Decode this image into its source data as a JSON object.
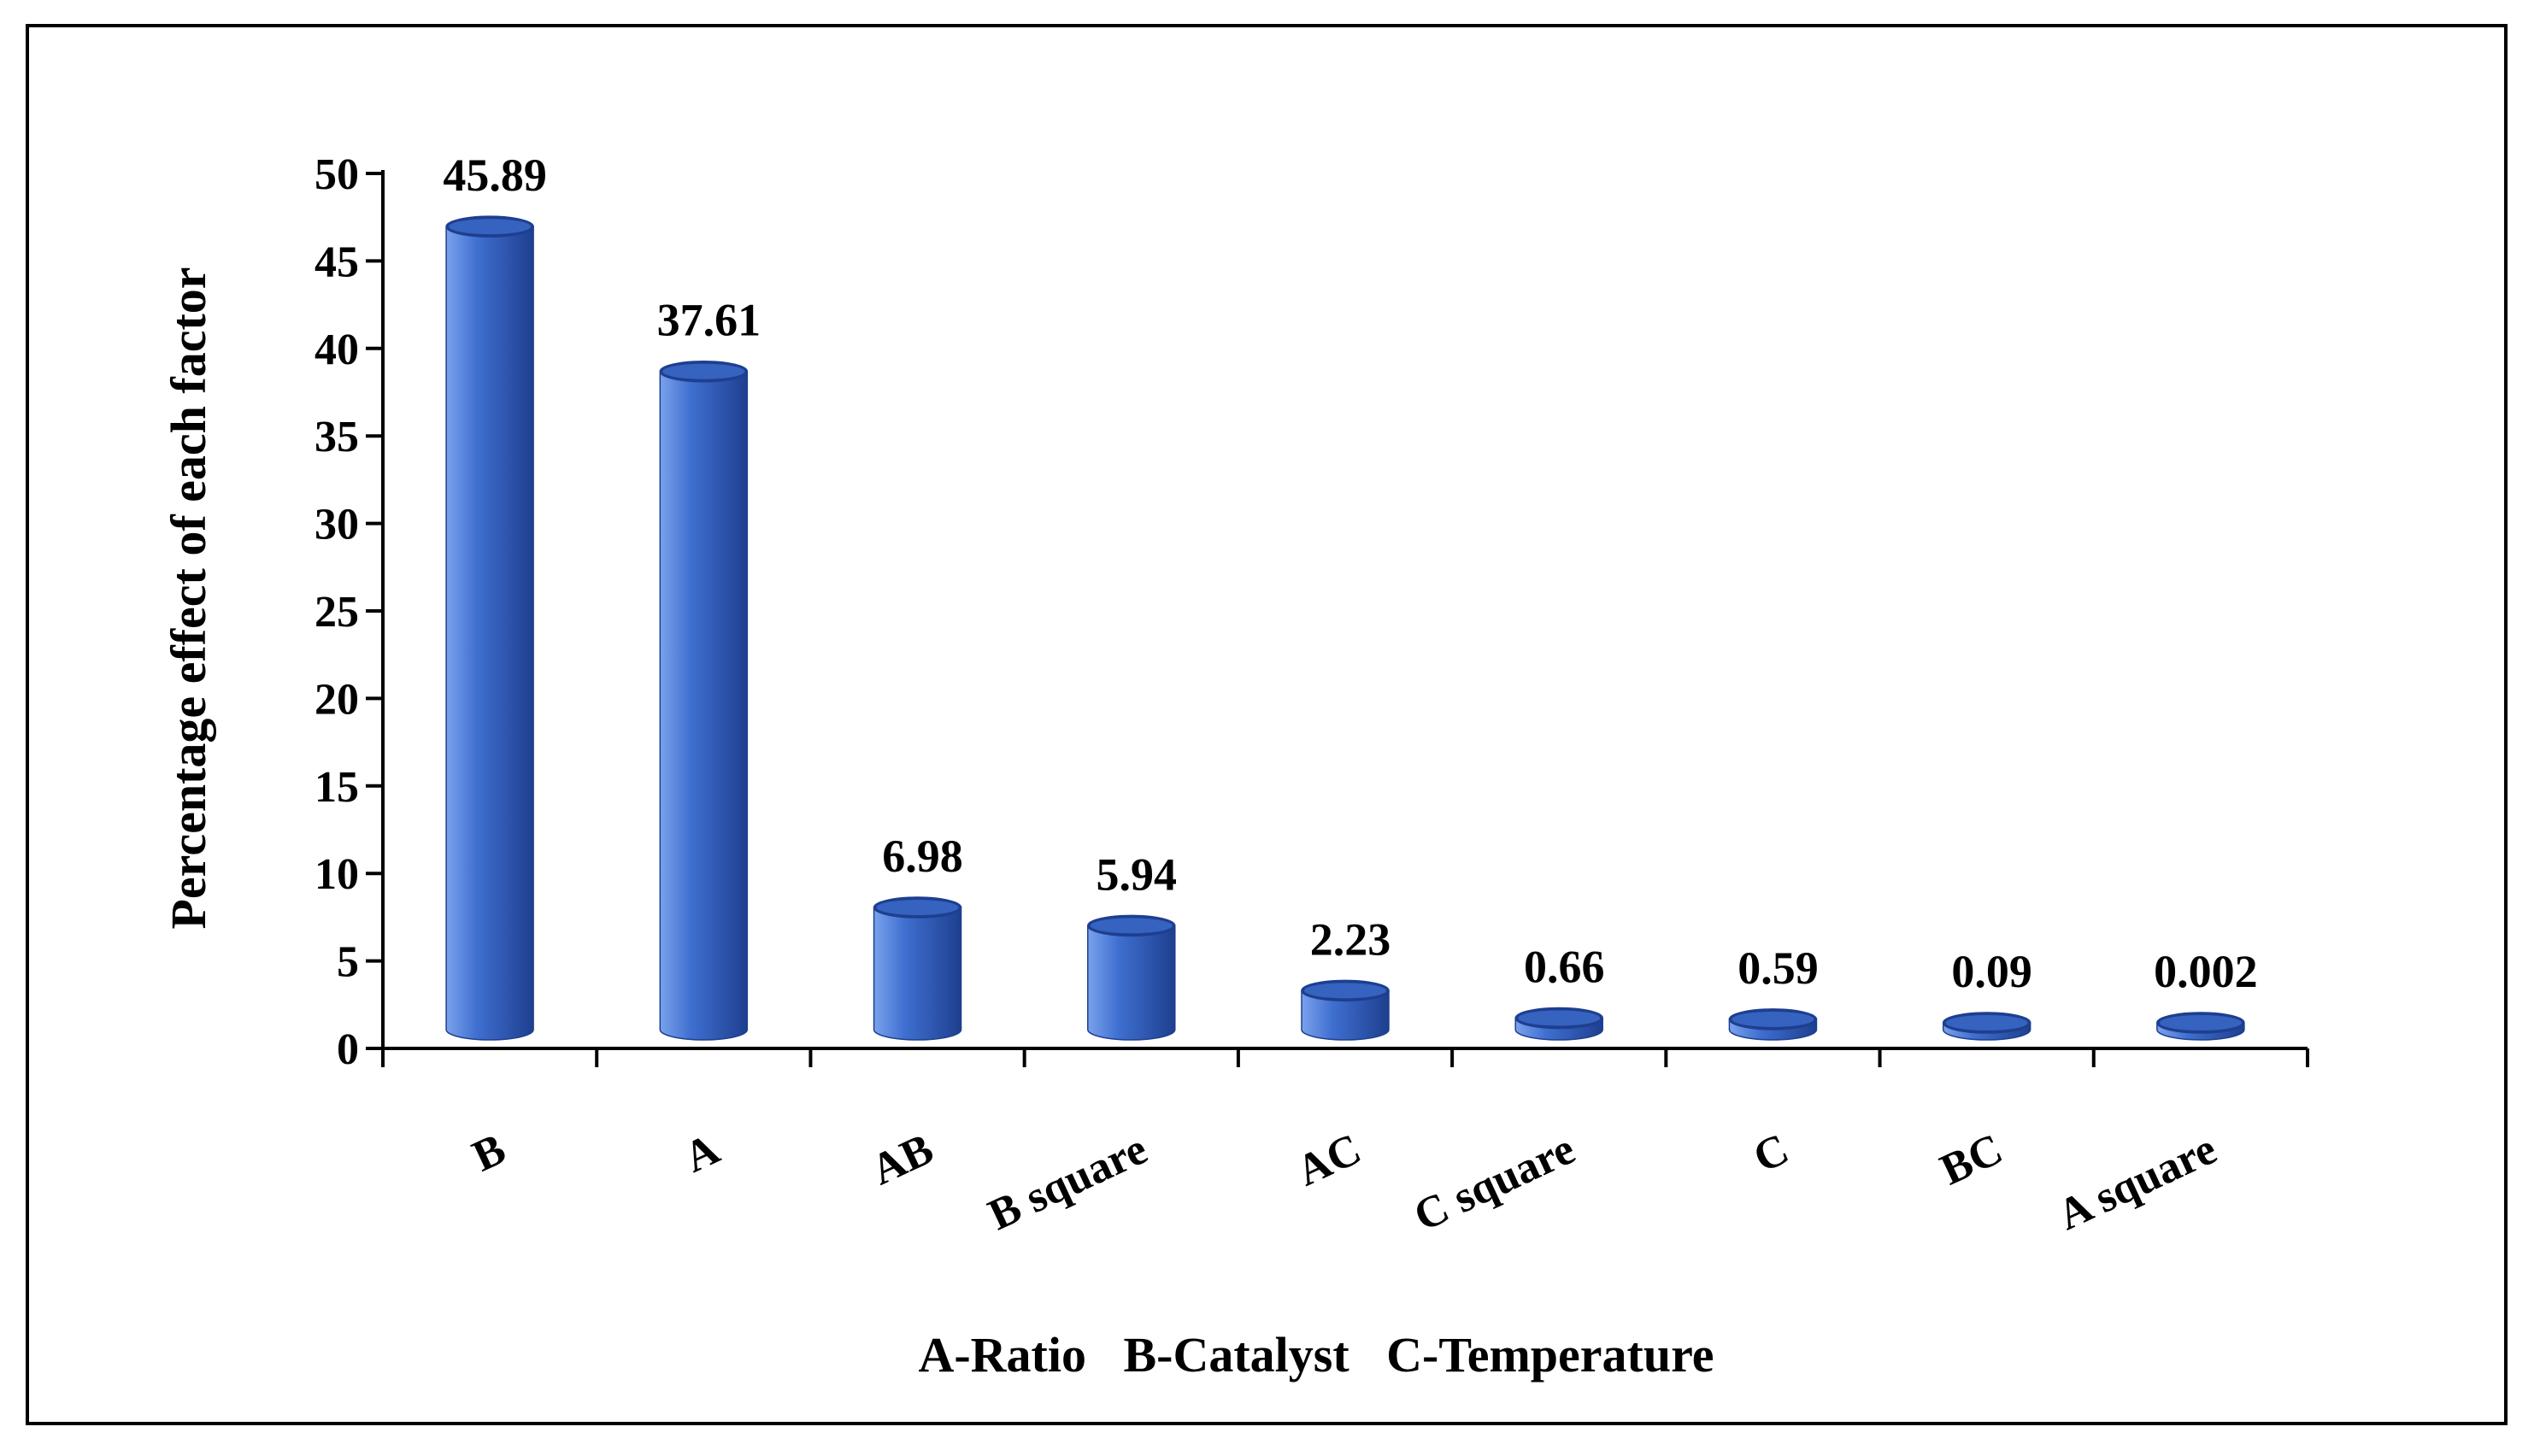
{
  "chart_data": {
    "type": "bar",
    "style": "3d-cylinder",
    "title": "",
    "ylabel": "Percentage effect of each factor",
    "xlabel": "A-Ratio   B-Catalyst   C-Temperature",
    "categories": [
      "B",
      "A",
      "AB",
      "B square",
      "AC",
      "C square",
      "C",
      "BC",
      "A square"
    ],
    "values": [
      45.89,
      37.61,
      6.98,
      5.94,
      2.23,
      0.66,
      0.59,
      0.09,
      0.002
    ],
    "data_labels": [
      "45.89",
      "37.61",
      "6.98",
      "5.94",
      "2.23",
      "0.66",
      "0.59",
      "0.09",
      "0.002"
    ],
    "ylim": [
      0,
      50
    ],
    "yticks": [
      0,
      5,
      10,
      15,
      20,
      25,
      30,
      35,
      40,
      45,
      50
    ],
    "grid": false,
    "legend": "none",
    "colors": {
      "bar": "#3f6fd0",
      "bar_dark": "#1e3f8f",
      "bar_light": "#7aa2ec",
      "axis": "#000000"
    }
  }
}
